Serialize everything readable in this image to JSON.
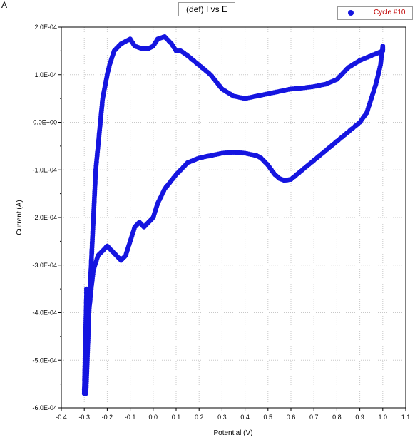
{
  "panel_letter": "A",
  "chart_data": {
    "type": "scatter",
    "title": "(def) I vs E",
    "xlabel": "Potential (V)",
    "ylabel": "Current (A)",
    "xlim": [
      -0.4,
      1.1
    ],
    "ylim": [
      -0.0006,
      0.0002
    ],
    "x_ticks": [
      "-0.4",
      "-0.3",
      "-0.2",
      "-0.1",
      "0.0",
      "0.1",
      "0.2",
      "0.3",
      "0.4",
      "0.5",
      "0.6",
      "0.7",
      "0.8",
      "0.9",
      "1.0",
      "1.1"
    ],
    "y_ticks": [
      "2.0E-04",
      "1.0E-04",
      "0.0E+00",
      "-1.0E-04",
      "-2.0E-04",
      "-3.0E-04",
      "-4.0E-04",
      "-5.0E-04",
      "-6.0E-04"
    ],
    "grid": true,
    "legend": "top-right",
    "series": [
      {
        "name": "Cycle #10",
        "color": "#1515e0",
        "x": [
          -0.293,
          -0.29,
          -0.287,
          -0.283,
          -0.28,
          -0.275,
          -0.27,
          -0.265,
          -0.26,
          -0.255,
          -0.25,
          -0.24,
          -0.23,
          -0.22,
          -0.2,
          -0.19,
          -0.18,
          -0.17,
          -0.15,
          -0.14,
          -0.12,
          -0.1,
          -0.08,
          -0.05,
          -0.02,
          0.0,
          0.02,
          0.05,
          0.08,
          0.1,
          0.12,
          0.15,
          0.2,
          0.25,
          0.3,
          0.35,
          0.4,
          0.45,
          0.5,
          0.55,
          0.6,
          0.65,
          0.7,
          0.75,
          0.8,
          0.85,
          0.9,
          0.95,
          1.0,
          1.0,
          0.995,
          0.99,
          0.98,
          0.97,
          0.95,
          0.93,
          0.9,
          0.85,
          0.8,
          0.75,
          0.7,
          0.65,
          0.6,
          0.57,
          0.55,
          0.53,
          0.5,
          0.47,
          0.45,
          0.4,
          0.35,
          0.3,
          0.25,
          0.2,
          0.15,
          0.1,
          0.05,
          0.02,
          0.0,
          -0.02,
          -0.04,
          -0.06,
          -0.08,
          -0.1,
          -0.12,
          -0.14,
          -0.16,
          -0.18,
          -0.2,
          -0.22,
          -0.24,
          -0.26,
          -0.27,
          -0.28,
          -0.29,
          -0.293,
          -0.295,
          -0.297,
          -0.299,
          -0.3,
          -0.299,
          -0.297,
          -0.295,
          -0.292,
          -0.29
        ],
        "y": [
          -0.00057,
          -0.00054,
          -0.0005,
          -0.00045,
          -0.0004,
          -0.00035,
          -0.0003,
          -0.00025,
          -0.0002,
          -0.00015,
          -0.0001,
          -5e-05,
          0.0,
          5e-05,
          0.0001,
          0.00012,
          0.000135,
          0.00015,
          0.00016,
          0.000165,
          0.00017,
          0.000175,
          0.00016,
          0.000155,
          0.000155,
          0.00016,
          0.000175,
          0.00018,
          0.000165,
          0.00015,
          0.00015,
          0.00014,
          0.00012,
          0.0001,
          7e-05,
          5.5e-05,
          5e-05,
          5.5e-05,
          6e-05,
          6.5e-05,
          7e-05,
          7.2e-05,
          7.5e-05,
          8e-05,
          9e-05,
          0.000115,
          0.00013,
          0.00014,
          0.00015,
          0.00016,
          0.00014,
          0.00012,
          0.0001,
          8e-05,
          5e-05,
          2e-05,
          0.0,
          -2e-05,
          -4e-05,
          -6e-05,
          -8e-05,
          -0.0001,
          -0.00012,
          -0.000122,
          -0.000118,
          -0.00011,
          -9e-05,
          -7.5e-05,
          -7e-05,
          -6.5e-05,
          -6.3e-05,
          -6.5e-05,
          -7e-05,
          -7.5e-05,
          -8.5e-05,
          -0.00011,
          -0.00014,
          -0.00017,
          -0.0002,
          -0.00021,
          -0.00022,
          -0.00021,
          -0.00022,
          -0.00025,
          -0.00028,
          -0.00029,
          -0.00028,
          -0.00027,
          -0.00026,
          -0.00027,
          -0.00028,
          -0.00031,
          -0.00035,
          -0.0004,
          -0.00045,
          -0.0005,
          -0.00053,
          -0.00055,
          -0.00056,
          -0.00057,
          -0.00055,
          -0.0005,
          -0.00045,
          -0.0004,
          -0.00035
        ]
      }
    ]
  }
}
